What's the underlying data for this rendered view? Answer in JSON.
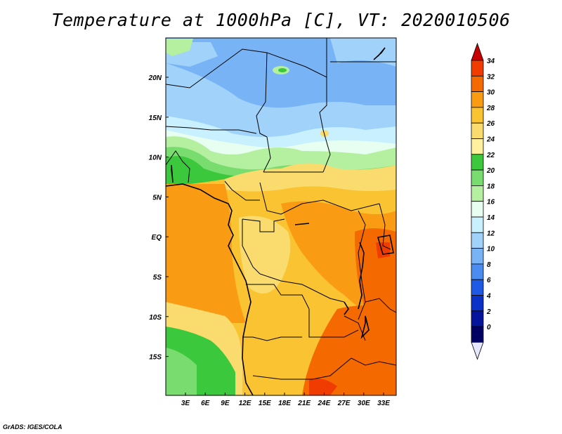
{
  "title": "Temperature at 1000hPa [C], VT: 2020010506",
  "credit": "GrADS: IGES/COLA",
  "lat_labels": [
    "20N",
    "15N",
    "10N",
    "5N",
    "EQ",
    "5S",
    "10S",
    "15S"
  ],
  "lon_labels": [
    "3E",
    "6E",
    "9E",
    "12E",
    "15E",
    "18E",
    "21E",
    "24E",
    "27E",
    "30E",
    "33E"
  ],
  "colorbar": {
    "labels": [
      "34",
      "32",
      "30",
      "28",
      "26",
      "24",
      "22",
      "20",
      "18",
      "16",
      "14",
      "12",
      "10",
      "8",
      "6",
      "4",
      "2",
      "0"
    ],
    "colors": [
      "#c80000",
      "#f03c00",
      "#f56a00",
      "#fa9b14",
      "#fac332",
      "#fadc6e",
      "#fff0a0",
      "#3cc83c",
      "#78dc6e",
      "#b4f0a0",
      "#e6fff0",
      "#c8f0ff",
      "#a0d2fa",
      "#78b4f5",
      "#4b8cf0",
      "#1e5ae6",
      "#0a32c8",
      "#05149b",
      "#000064",
      "#e6e6ff"
    ]
  },
  "map_colors": {
    "sahara_blue": "#78b4f5",
    "sahara_light": "#a0d2fa",
    "sahel_cyan": "#c8f0ff",
    "green_belt": "#3cc83c",
    "light_green": "#78dc6e",
    "gulf_orange": "#fa9b14",
    "basin_yellow": "#fac332",
    "east_orange": "#f56a00"
  }
}
